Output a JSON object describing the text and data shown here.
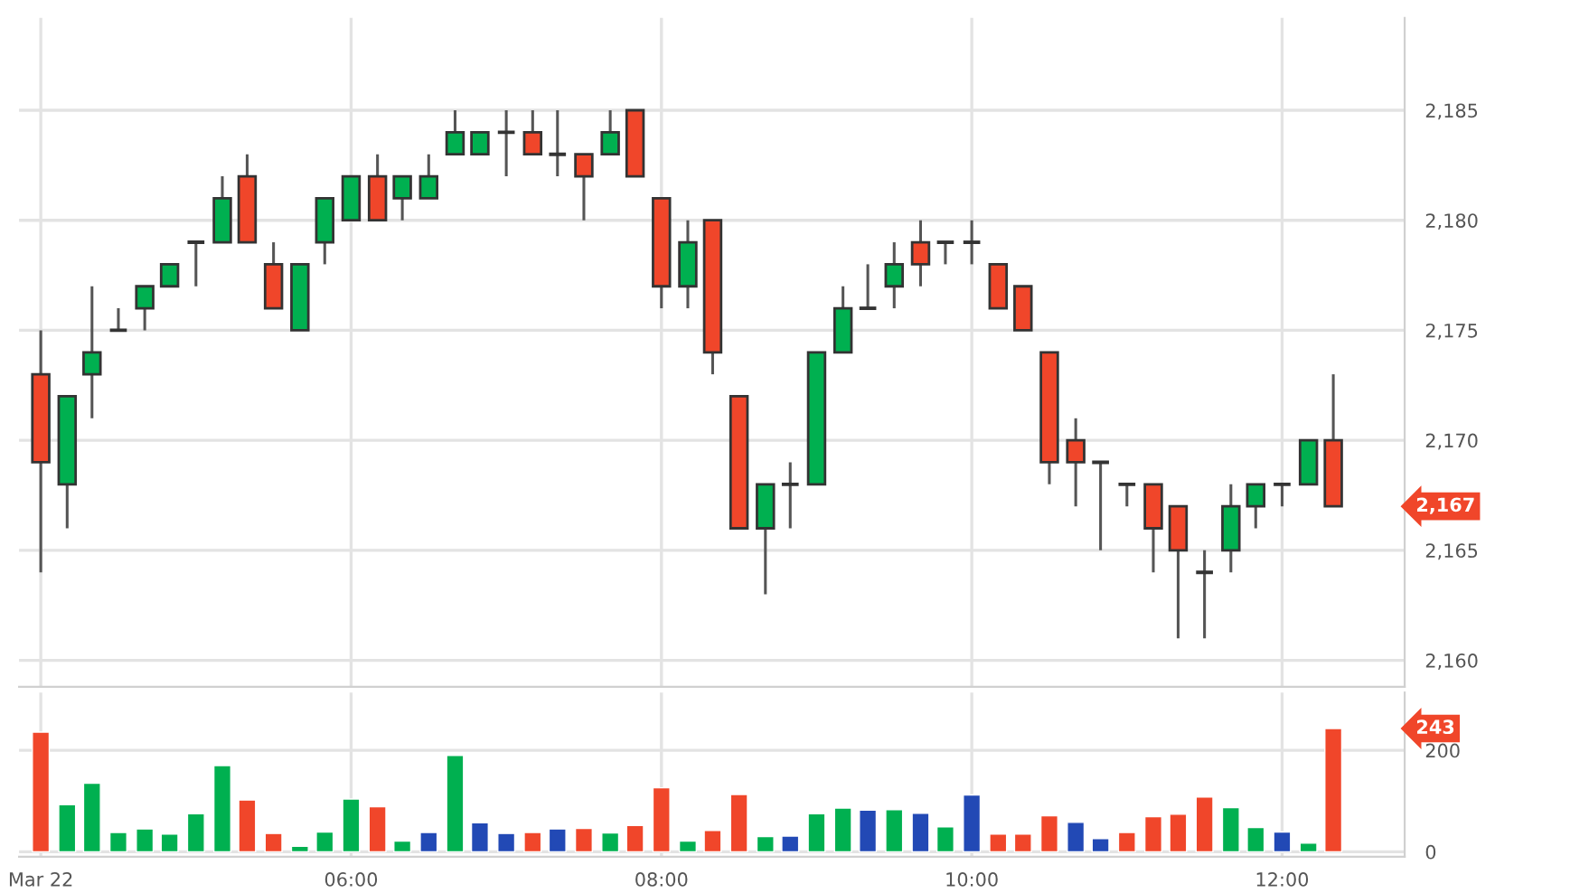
{
  "chart_data": [
    {
      "type": "candlestick",
      "x": [
        4,
        4.17,
        4.33,
        4.5,
        4.67,
        4.83,
        5,
        5.17,
        5.33,
        5.5,
        5.67,
        5.83,
        6,
        6.17,
        6.33,
        6.5,
        6.67,
        6.83,
        7,
        7.17,
        7.33,
        7.5,
        7.67,
        7.83,
        8,
        8.17,
        8.33,
        8.5,
        8.67,
        8.83,
        9,
        9.17,
        9.33,
        9.5,
        9.67,
        9.83,
        10,
        10.17,
        10.33,
        10.5,
        10.67,
        10.83,
        11,
        11.17,
        11.33,
        11.5,
        11.67,
        11.83,
        12,
        12.17,
        12.33
      ],
      "ohlc": [
        [
          2173,
          2175,
          2164,
          2169
        ],
        [
          2168,
          2172,
          2166,
          2172
        ],
        [
          2173,
          2177,
          2171,
          2174
        ],
        [
          2175,
          2176,
          2175,
          2175
        ],
        [
          2176,
          2177,
          2175,
          2177
        ],
        [
          2177,
          2178,
          2177,
          2178
        ],
        [
          2179,
          2179,
          2177,
          2179
        ],
        [
          2179,
          2182,
          2179,
          2181
        ],
        [
          2182,
          2183,
          2179,
          2179
        ],
        [
          2178,
          2179,
          2176,
          2176
        ],
        [
          2175,
          2178,
          2175,
          2178
        ],
        [
          2179,
          2181,
          2178,
          2181
        ],
        [
          2180,
          2182,
          2180,
          2182
        ],
        [
          2182,
          2183,
          2180,
          2180
        ],
        [
          2181,
          2182,
          2180,
          2182
        ],
        [
          2181,
          2183,
          2181,
          2182
        ],
        [
          2183,
          2185,
          2183,
          2184
        ],
        [
          2183,
          2184,
          2183,
          2184
        ],
        [
          2184,
          2185,
          2182,
          2184
        ],
        [
          2184,
          2185,
          2183,
          2183
        ],
        [
          2183,
          2185,
          2182,
          2183
        ],
        [
          2183,
          2183,
          2180,
          2182
        ],
        [
          2183,
          2185,
          2183,
          2184
        ],
        [
          2185,
          2185,
          2182,
          2182
        ],
        [
          2181,
          2181,
          2176,
          2177
        ],
        [
          2177,
          2180,
          2176,
          2179
        ],
        [
          2180,
          2180,
          2173,
          2174
        ],
        [
          2172,
          2172,
          2166,
          2166
        ],
        [
          2166,
          2168,
          2163,
          2168
        ],
        [
          2168,
          2169,
          2166,
          2168
        ],
        [
          2168,
          2174,
          2168,
          2174
        ],
        [
          2174,
          2177,
          2174,
          2176
        ],
        [
          2176,
          2178,
          2176,
          2176
        ],
        [
          2177,
          2179,
          2176,
          2178
        ],
        [
          2179,
          2180,
          2177,
          2178
        ],
        [
          2179,
          2179,
          2178,
          2179
        ],
        [
          2179,
          2180,
          2178,
          2179
        ],
        [
          2178,
          2178,
          2176,
          2176
        ],
        [
          2177,
          2177,
          2175,
          2175
        ],
        [
          2174,
          2174,
          2168,
          2169
        ],
        [
          2170,
          2171,
          2167,
          2169
        ],
        [
          2169,
          2169,
          2165,
          2169
        ],
        [
          2168,
          2168,
          2167,
          2168
        ],
        [
          2168,
          2168,
          2164,
          2166
        ],
        [
          2167,
          2167,
          2161,
          2165
        ],
        [
          2164,
          2165,
          2161,
          2164
        ],
        [
          2165,
          2168,
          2164,
          2167
        ],
        [
          2167,
          2168,
          2166,
          2168
        ],
        [
          2168,
          2168,
          2167,
          2168
        ],
        [
          2168,
          2170,
          2168,
          2170
        ],
        [
          2170,
          2173,
          2167,
          2167
        ]
      ],
      "colors": [
        "#f0462a",
        "#00b050",
        "#00b050",
        "#333333",
        "#00b050",
        "#00b050",
        "#333333",
        "#00b050",
        "#f0462a",
        "#f0462a",
        "#00b050",
        "#00b050",
        "#00b050",
        "#f0462a",
        "#00b050",
        "#00b050",
        "#00b050",
        "#00b050",
        "#333333",
        "#f0462a",
        "#333333",
        "#f0462a",
        "#00b050",
        "#f0462a",
        "#f0462a",
        "#00b050",
        "#f0462a",
        "#f0462a",
        "#00b050",
        "#333333",
        "#00b050",
        "#00b050",
        "#333333",
        "#00b050",
        "#f0462a",
        "#333333",
        "#333333",
        "#f0462a",
        "#f0462a",
        "#f0462a",
        "#f0462a",
        "#333333",
        "#333333",
        "#f0462a",
        "#f0462a",
        "#333333",
        "#00b050",
        "#00b050",
        "#333333",
        "#00b050",
        "#f0462a"
      ],
      "xlim": [
        3.86,
        12.79
      ],
      "ylim": [
        2158.8,
        2189.2
      ],
      "xticks": [
        {
          "value": 4,
          "label": null
        },
        {
          "value": 6,
          "label": null
        },
        {
          "value": 8,
          "label": null
        },
        {
          "value": 10,
          "label": null
        },
        {
          "value": 12,
          "label": null
        }
      ],
      "yticks": [
        {
          "value": 2160,
          "label": "2,160"
        },
        {
          "value": 2165,
          "label": "2,165"
        },
        {
          "value": 2170,
          "label": "2,170"
        },
        {
          "value": 2175,
          "label": "2,175"
        },
        {
          "value": 2180,
          "label": "2,180"
        },
        {
          "value": 2185,
          "label": "2,185"
        }
      ],
      "grid": true,
      "tick_labels": "y",
      "annotations": [
        "2,167"
      ]
    },
    {
      "type": "bar",
      "x": [
        4,
        4.17,
        4.33,
        4.5,
        4.67,
        4.83,
        5,
        5.17,
        5.33,
        5.5,
        5.67,
        5.83,
        6,
        6.17,
        6.33,
        6.5,
        6.67,
        6.83,
        7,
        7.17,
        7.33,
        7.5,
        7.67,
        7.83,
        8,
        8.17,
        8.33,
        8.5,
        8.67,
        8.83,
        9,
        9.17,
        9.33,
        9.5,
        9.67,
        9.83,
        10,
        10.17,
        10.33,
        10.5,
        10.67,
        10.83,
        11,
        11.17,
        11.33,
        11.5,
        11.67,
        11.83,
        12,
        12.17,
        12.33
      ],
      "values": [
        236,
        93,
        135,
        38,
        45,
        35,
        75,
        170,
        102,
        36,
        11,
        39,
        104,
        89,
        21,
        38,
        190,
        57,
        36,
        38,
        45,
        46,
        37,
        52,
        126,
        21,
        42,
        113,
        30,
        31,
        75,
        86,
        82,
        83,
        76,
        49,
        112,
        35,
        35,
        71,
        58,
        26,
        38,
        69,
        74,
        108,
        87,
        48,
        39,
        17,
        243
      ],
      "colors": [
        "#f0462a",
        "#00b050",
        "#00b050",
        "#00b050",
        "#00b050",
        "#00b050",
        "#00b050",
        "#00b050",
        "#f0462a",
        "#f0462a",
        "#00b050",
        "#00b050",
        "#00b050",
        "#f0462a",
        "#00b050",
        "#2249b5",
        "#00b050",
        "#2249b5",
        "#2249b5",
        "#f0462a",
        "#2249b5",
        "#f0462a",
        "#00b050",
        "#f0462a",
        "#f0462a",
        "#00b050",
        "#f0462a",
        "#f0462a",
        "#00b050",
        "#2249b5",
        "#00b050",
        "#00b050",
        "#2249b5",
        "#00b050",
        "#2249b5",
        "#00b050",
        "#2249b5",
        "#f0462a",
        "#f0462a",
        "#f0462a",
        "#2249b5",
        "#2249b5",
        "#f0462a",
        "#f0462a",
        "#f0462a",
        "#f0462a",
        "#00b050",
        "#00b050",
        "#2249b5",
        "#00b050",
        "#f0462a"
      ],
      "xlim": [
        3.86,
        12.79
      ],
      "ylim": [
        -10,
        314
      ],
      "xticks": [
        {
          "value": 4,
          "label": "Mar 22"
        },
        {
          "value": 6,
          "label": "06:00"
        },
        {
          "value": 8,
          "label": "08:00"
        },
        {
          "value": 10,
          "label": "10:00"
        },
        {
          "value": 12,
          "label": "12:00"
        }
      ],
      "yticks": [
        0,
        200
      ],
      "grid": true,
      "annotations": [
        "243"
      ]
    }
  ]
}
